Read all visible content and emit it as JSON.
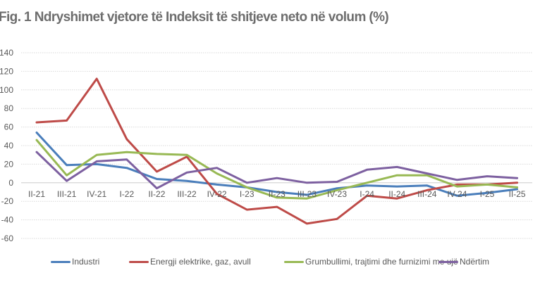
{
  "chart_data": {
    "type": "line",
    "title": "Fig. 1 Ndryshimet vjetore të Indeksit të shitjeve neto në volum (%)",
    "xlabel": "",
    "ylabel": "",
    "ylim": [
      -60,
      140
    ],
    "yticks": [
      140,
      120,
      100,
      80,
      60,
      40,
      20,
      0,
      -20,
      -40,
      -60
    ],
    "grid": true,
    "legend_position": "bottom",
    "categories": [
      "II-21",
      "III-21",
      "IV-21",
      "I-22",
      "II-22",
      "III-22",
      "IV-22",
      "I-23",
      "II-23",
      "III-23",
      "IV-23",
      "I-24",
      "II-24",
      "III-24",
      "IV-24",
      "I-25",
      "II-25"
    ],
    "series": [
      {
        "name": "Industri",
        "color": "#4a7ebb",
        "values": [
          54,
          19,
          20,
          16,
          4,
          2,
          -2,
          -5,
          -10,
          -13,
          -6,
          -3,
          -4,
          -3,
          -14,
          -11,
          -7
        ]
      },
      {
        "name": "Energji elektrike, gaz, avull",
        "color": "#be4b48",
        "values": [
          65,
          67,
          112,
          47,
          12,
          28,
          -12,
          -29,
          -26,
          -44,
          -39,
          -14,
          -17,
          -8,
          -2,
          -2,
          0
        ]
      },
      {
        "name": "Grumbullimi, trajtimi dhe furnizimi me ujë",
        "color": "#98b954",
        "values": [
          46,
          8,
          30,
          33,
          31,
          30,
          10,
          -5,
          -16,
          -17,
          -8,
          0,
          8,
          8,
          -4,
          -2,
          -5
        ]
      },
      {
        "name": "Ndërtim",
        "color": "#7d60a0",
        "values": [
          33,
          2,
          23,
          25,
          -6,
          11,
          16,
          0,
          5,
          0,
          1,
          14,
          17,
          10,
          3,
          7,
          5
        ]
      }
    ]
  }
}
